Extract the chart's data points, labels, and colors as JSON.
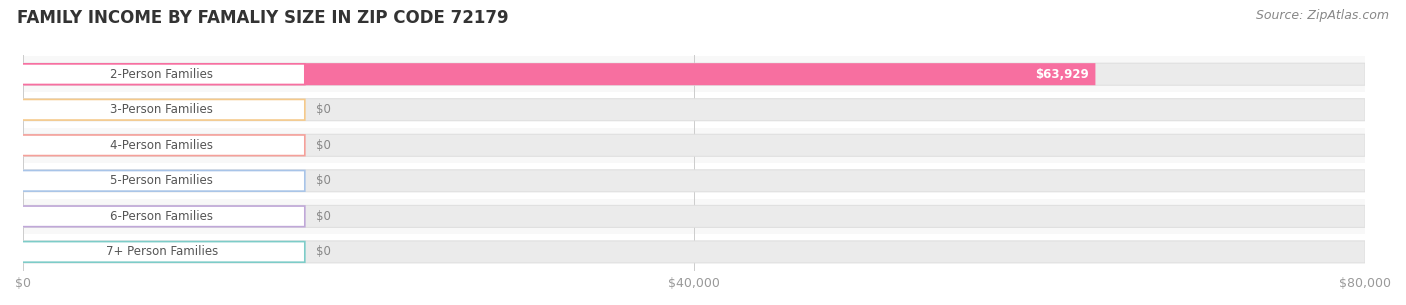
{
  "title": "FAMILY INCOME BY FAMALIY SIZE IN ZIP CODE 72179",
  "source": "Source: ZipAtlas.com",
  "categories": [
    "2-Person Families",
    "3-Person Families",
    "4-Person Families",
    "5-Person Families",
    "6-Person Families",
    "7+ Person Families"
  ],
  "values": [
    63929,
    0,
    0,
    0,
    0,
    0
  ],
  "bar_colors": [
    "#f76fa0",
    "#f5c98a",
    "#f5a09a",
    "#a8c4e8",
    "#c0a8d8",
    "#7dccc8"
  ],
  "xlim": [
    0,
    80000
  ],
  "xticks": [
    0,
    40000,
    80000
  ],
  "xtick_labels": [
    "$0",
    "$40,000",
    "$80,000"
  ],
  "value_labels": [
    "$63,929",
    "$0",
    "$0",
    "$0",
    "$0",
    "$0"
  ],
  "title_fontsize": 12,
  "label_fontsize": 8.5,
  "tick_fontsize": 9,
  "source_fontsize": 9,
  "background_color": "#ffffff",
  "track_color": "#ebebeb",
  "track_edge_color": "#dddddd",
  "row_bg_even": "#f8f8f8",
  "row_bg_odd": "#ffffff"
}
